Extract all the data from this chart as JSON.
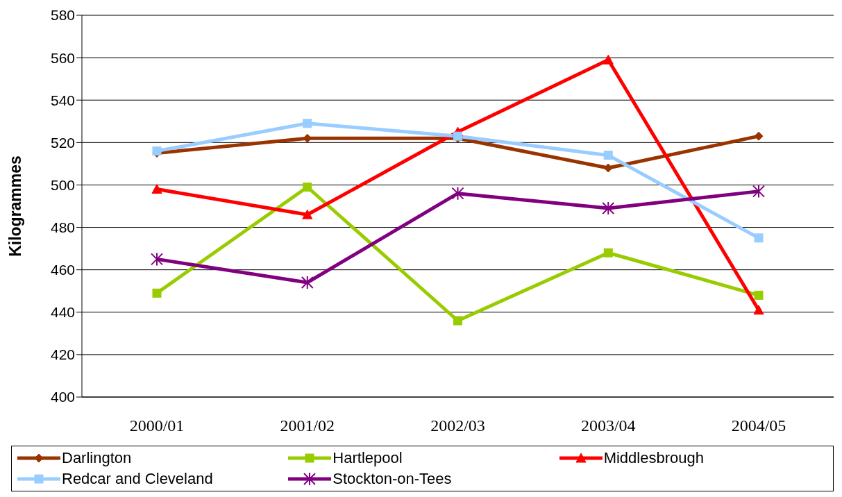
{
  "chart_data": {
    "type": "line",
    "ylabel": "Kilogrammes",
    "categories": [
      "2000/01",
      "2001/02",
      "2002/03",
      "2003/04",
      "2004/05"
    ],
    "series": [
      {
        "name": "Darlington",
        "color": "#993300",
        "marker": "diamond",
        "values": [
          515,
          522,
          522,
          508,
          523
        ]
      },
      {
        "name": "Hartlepool",
        "color": "#99cc00",
        "marker": "square",
        "values": [
          449,
          499,
          436,
          468,
          448
        ]
      },
      {
        "name": "Middlesbrough",
        "color": "#ff0000",
        "marker": "triangle",
        "values": [
          498,
          486,
          525,
          559,
          441
        ]
      },
      {
        "name": "Redcar and Cleveland",
        "color": "#99ccff",
        "marker": "square",
        "values": [
          516,
          529,
          523,
          514,
          475
        ]
      },
      {
        "name": "Stockton-on-Tees",
        "color": "#800080",
        "marker": "cross",
        "values": [
          465,
          454,
          496,
          489,
          497
        ]
      }
    ],
    "ylim": [
      400,
      580
    ],
    "yticks": [
      400,
      420,
      440,
      460,
      480,
      500,
      520,
      540,
      560,
      580
    ],
    "grid": "y",
    "legend": "bottom",
    "line_style": "solid"
  }
}
